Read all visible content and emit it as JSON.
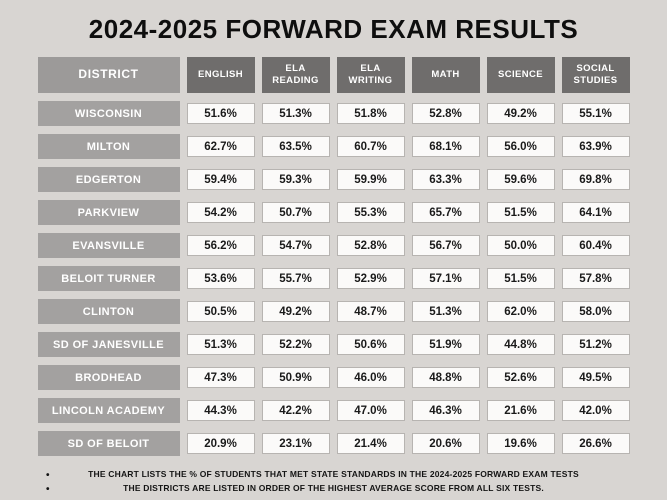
{
  "title": "2024-2025 FORWARD EXAM RESULTS",
  "bullet_glyph": "•",
  "table": {
    "district_header": "DISTRICT",
    "columns": [
      "ENGLISH",
      "ELA READING",
      "ELA WRITING",
      "MATH",
      "SCIENCE",
      "SOCIAL STUDIES"
    ],
    "rows": [
      {
        "district": "WISCONSIN",
        "values": [
          "51.6%",
          "51.3%",
          "51.8%",
          "52.8%",
          "49.2%",
          "55.1%"
        ]
      },
      {
        "district": "MILTON",
        "values": [
          "62.7%",
          "63.5%",
          "60.7%",
          "68.1%",
          "56.0%",
          "63.9%"
        ]
      },
      {
        "district": "EDGERTON",
        "values": [
          "59.4%",
          "59.3%",
          "59.9%",
          "63.3%",
          "59.6%",
          "69.8%"
        ]
      },
      {
        "district": "PARKVIEW",
        "values": [
          "54.2%",
          "50.7%",
          "55.3%",
          "65.7%",
          "51.5%",
          "64.1%"
        ]
      },
      {
        "district": "EVANSVILLE",
        "values": [
          "56.2%",
          "54.7%",
          "52.8%",
          "56.7%",
          "50.0%",
          "60.4%"
        ]
      },
      {
        "district": "BELOIT TURNER",
        "values": [
          "53.6%",
          "55.7%",
          "52.9%",
          "57.1%",
          "51.5%",
          "57.8%"
        ]
      },
      {
        "district": "CLINTON",
        "values": [
          "50.5%",
          "49.2%",
          "48.7%",
          "51.3%",
          "62.0%",
          "58.0%"
        ]
      },
      {
        "district": "SD OF JANESVILLE",
        "values": [
          "51.3%",
          "52.2%",
          "50.6%",
          "51.9%",
          "44.8%",
          "51.2%"
        ]
      },
      {
        "district": "BRODHEAD",
        "values": [
          "47.3%",
          "50.9%",
          "46.0%",
          "48.8%",
          "52.6%",
          "49.5%"
        ]
      },
      {
        "district": "LINCOLN ACADEMY",
        "values": [
          "44.3%",
          "42.2%",
          "47.0%",
          "46.3%",
          "21.6%",
          "42.0%"
        ]
      },
      {
        "district": "SD OF BELOIT",
        "values": [
          "20.9%",
          "23.1%",
          "21.4%",
          "20.6%",
          "19.6%",
          "26.6%"
        ]
      }
    ]
  },
  "footnotes": [
    "THE CHART LISTS THE % OF STUDENTS THAT MET STATE STANDARDS IN THE 2024-2025 FORWARD EXAM TESTS",
    "THE DISTRICTS ARE LISTED IN ORDER OF THE HIGHEST AVERAGE SCORE FROM ALL SIX TESTS."
  ],
  "colors": {
    "background": "#d8d5d2",
    "header_dark": "#6f6d6c",
    "district_gray": "#a3a1a0",
    "cell_white": "#fbfaf9",
    "cell_border": "#b7b4b1",
    "text_dark": "#0e0e0e",
    "text_light": "#ffffff"
  },
  "chart_data": {
    "type": "table",
    "title": "2024-2025 Forward Exam Results (% of students meeting state standards)",
    "columns": [
      "District",
      "English",
      "ELA Reading",
      "ELA Writing",
      "Math",
      "Science",
      "Social Studies"
    ],
    "rows": [
      [
        "WISCONSIN",
        51.6,
        51.3,
        51.8,
        52.8,
        49.2,
        55.1
      ],
      [
        "MILTON",
        62.7,
        63.5,
        60.7,
        68.1,
        56.0,
        63.9
      ],
      [
        "EDGERTON",
        59.4,
        59.3,
        59.9,
        63.3,
        59.6,
        69.8
      ],
      [
        "PARKVIEW",
        54.2,
        50.7,
        55.3,
        65.7,
        51.5,
        64.1
      ],
      [
        "EVANSVILLE",
        56.2,
        54.7,
        52.8,
        56.7,
        50.0,
        60.4
      ],
      [
        "BELOIT TURNER",
        53.6,
        55.7,
        52.9,
        57.1,
        51.5,
        57.8
      ],
      [
        "CLINTON",
        50.5,
        49.2,
        48.7,
        51.3,
        62.0,
        58.0
      ],
      [
        "SD OF JANESVILLE",
        51.3,
        52.2,
        50.6,
        51.9,
        44.8,
        51.2
      ],
      [
        "BRODHEAD",
        47.3,
        50.9,
        46.0,
        48.8,
        52.6,
        49.5
      ],
      [
        "LINCOLN ACADEMY",
        44.3,
        42.2,
        47.0,
        46.3,
        21.6,
        42.0
      ],
      [
        "SD OF BELOIT",
        20.9,
        23.1,
        21.4,
        20.6,
        19.6,
        26.6
      ]
    ],
    "notes": [
      "Values are the percent of students that met state standards in the 2024-2025 Forward Exam tests",
      "Districts listed in order of the highest average score from all six tests"
    ]
  }
}
